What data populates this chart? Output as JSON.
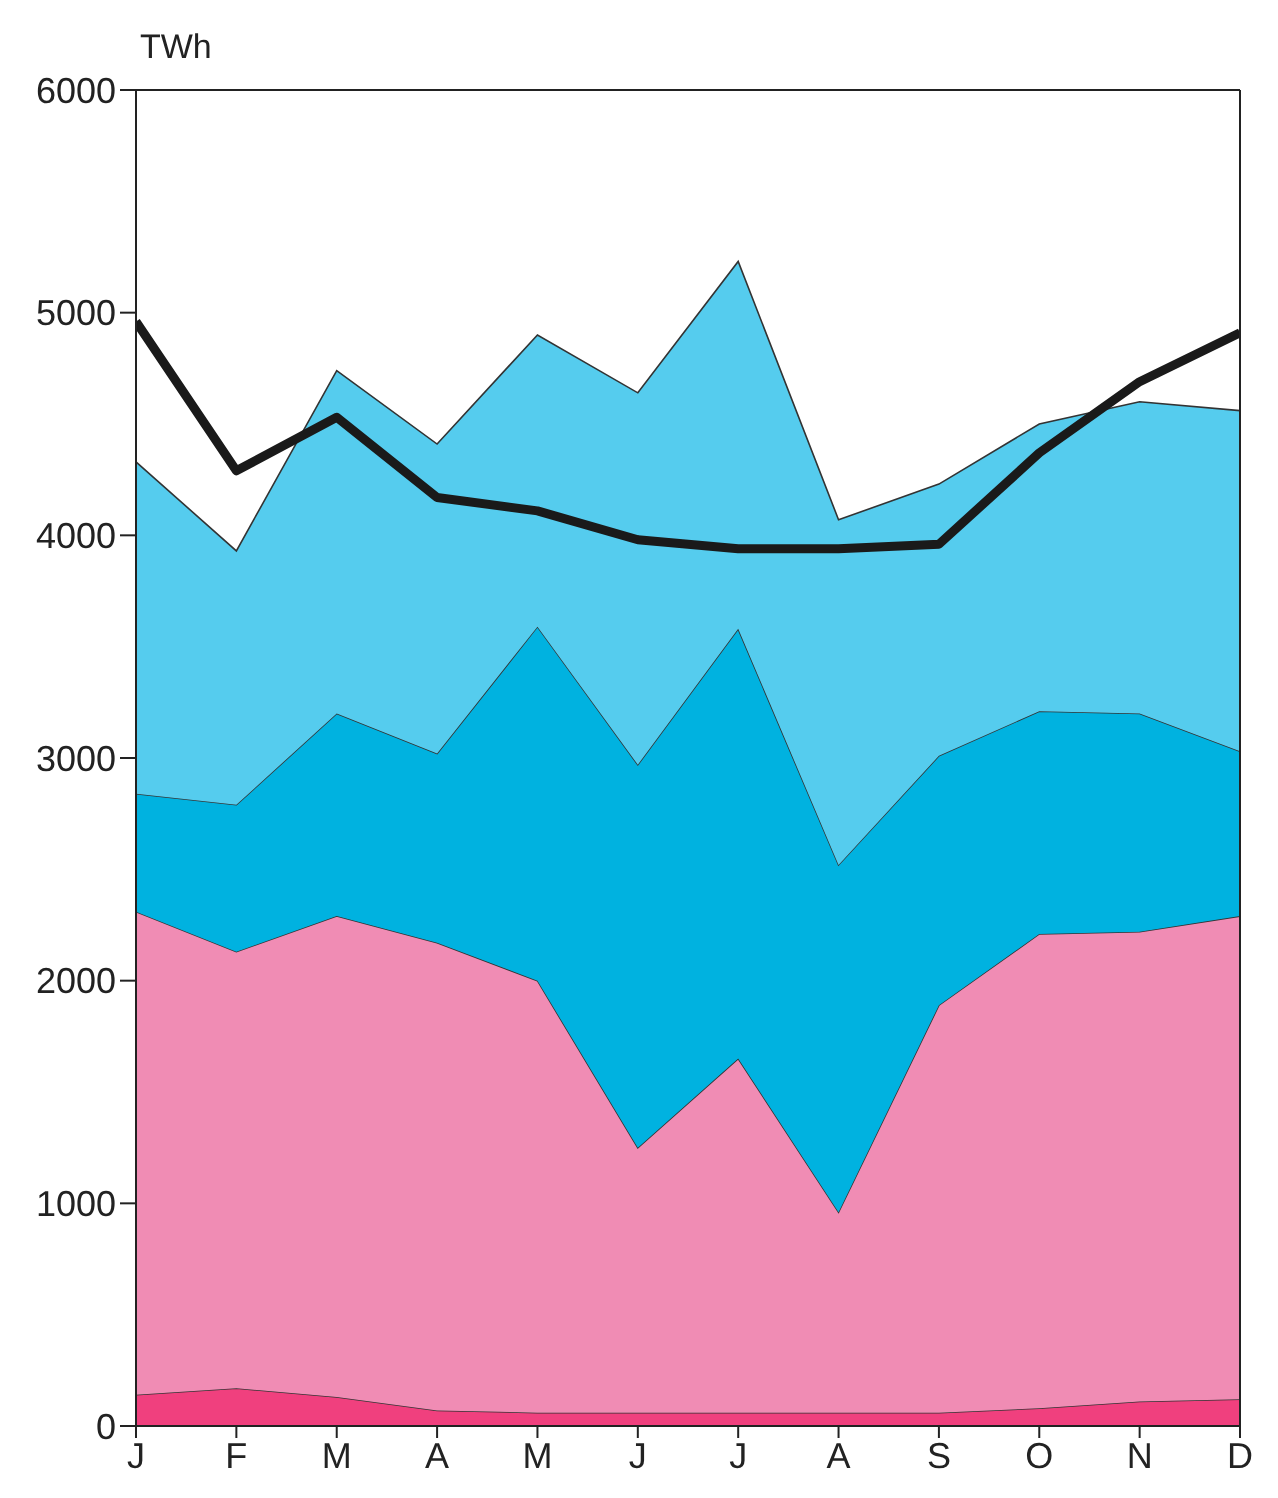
{
  "chart_data": {
    "type": "area",
    "stacked": true,
    "ylabel": "TWh",
    "categories": [
      "J",
      "F",
      "M",
      "A",
      "M",
      "J",
      "J",
      "A",
      "S",
      "O",
      "N",
      "D"
    ],
    "ylim": [
      0,
      6000
    ],
    "yticks": [
      0,
      1000,
      2000,
      3000,
      4000,
      5000,
      6000
    ],
    "series": [
      {
        "color": "#f0407e",
        "values": [
          140,
          170,
          130,
          70,
          60,
          60,
          60,
          60,
          60,
          80,
          110,
          120
        ]
      },
      {
        "color": "#f08cb4",
        "values": [
          2170,
          1960,
          2160,
          2100,
          1940,
          1190,
          1590,
          900,
          1830,
          2130,
          2110,
          2170
        ]
      },
      {
        "color": "#00b2e0",
        "values": [
          530,
          660,
          910,
          850,
          1590,
          1720,
          1930,
          1560,
          1120,
          1000,
          980,
          740
        ]
      },
      {
        "color": "#55ccee",
        "values": [
          1490,
          1140,
          1540,
          1390,
          1310,
          1670,
          1650,
          1550,
          1220,
          1290,
          1400,
          1530
        ]
      },
      {
        "type": "line",
        "color": "#1a1a1a",
        "values": [
          4960,
          4290,
          4530,
          4170,
          4110,
          3980,
          3940,
          3940,
          3960,
          4370,
          4690,
          4910
        ]
      }
    ]
  }
}
